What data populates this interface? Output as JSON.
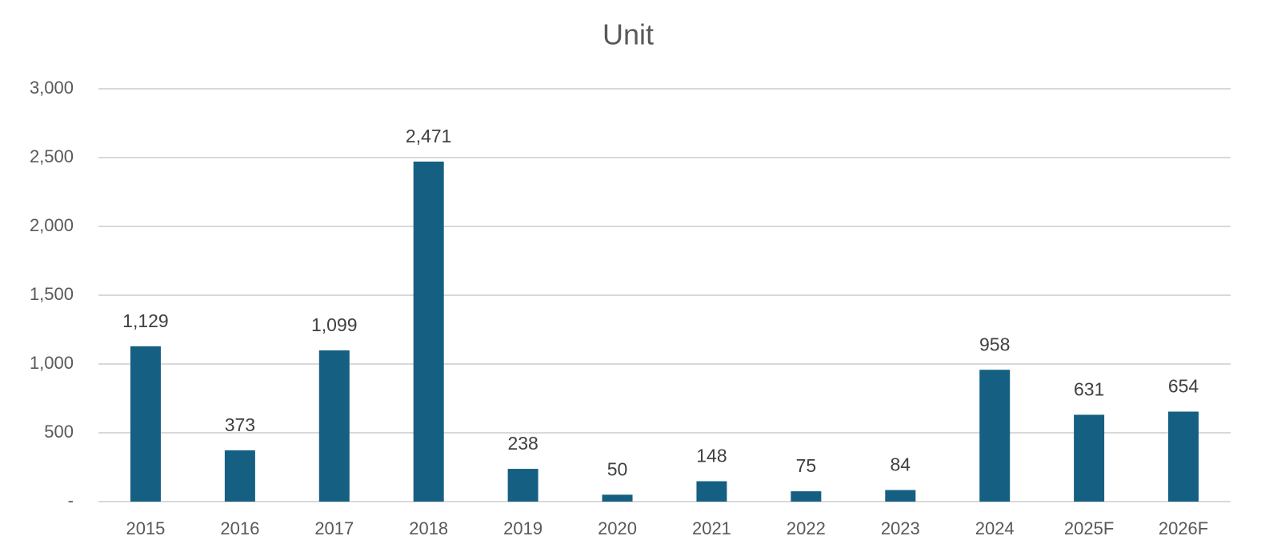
{
  "chart_data": {
    "type": "bar",
    "title": "Unit",
    "categories": [
      "2015",
      "2016",
      "2017",
      "2018",
      "2019",
      "2020",
      "2021",
      "2022",
      "2023",
      "2024",
      "2025F",
      "2026F"
    ],
    "values": [
      1129,
      373,
      1099,
      2471,
      238,
      50,
      148,
      75,
      84,
      958,
      631,
      654
    ],
    "value_labels": [
      "1,129",
      "373",
      "1,099",
      "2,471",
      "238",
      "50",
      "148",
      "75",
      "84",
      "958",
      "631",
      "654"
    ],
    "color": "#155f82",
    "ylim": [
      0,
      3000
    ],
    "yticks": [
      {
        "value": 0,
        "label": "-"
      },
      500,
      {
        "value": 1000,
        "label": "1,000"
      },
      {
        "value": 1500,
        "label": "1,500"
      },
      {
        "value": 2000,
        "label": "2,000"
      },
      {
        "value": 2500,
        "label": "2,500"
      },
      {
        "value": 3000,
        "label": "3,000"
      }
    ],
    "grid": true
  }
}
